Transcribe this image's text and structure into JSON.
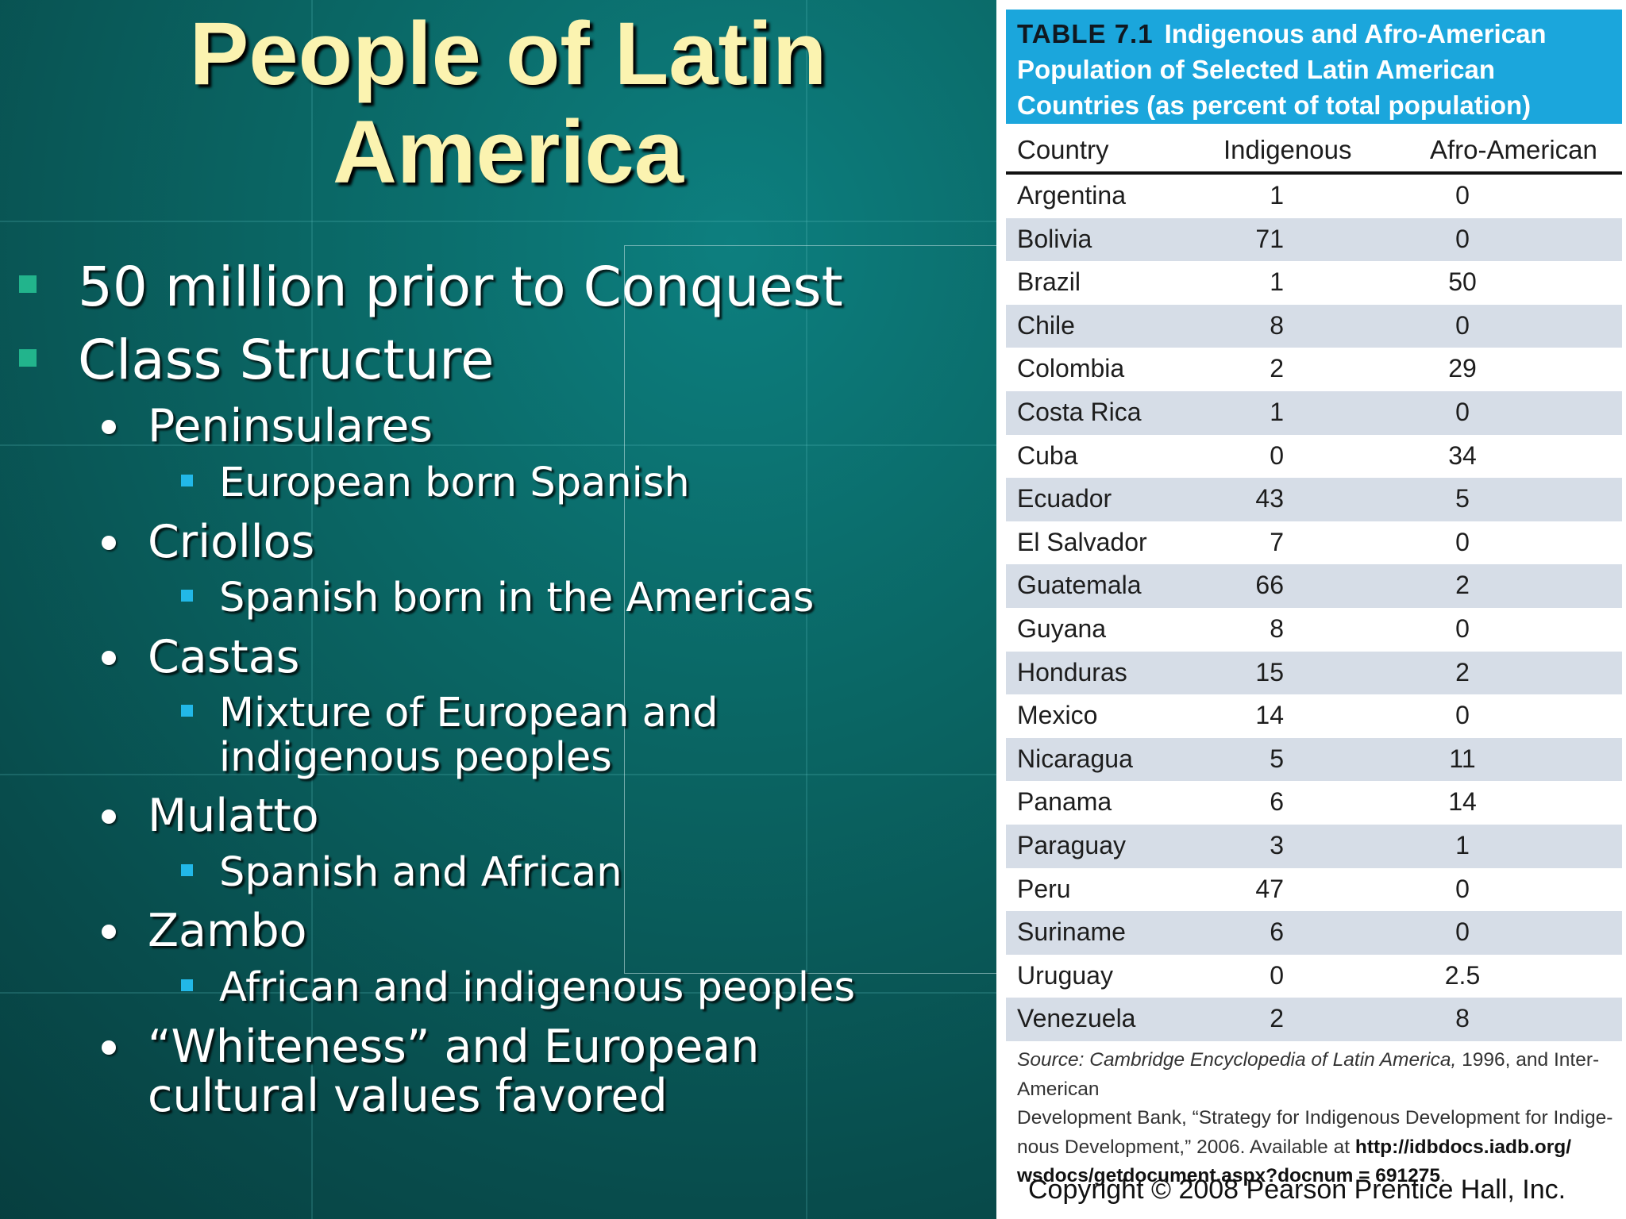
{
  "slide": {
    "title_line1": "People of Latin",
    "title_line2": "America",
    "bullets": {
      "b1": "50 million prior to Conquest",
      "b2": "Class Structure",
      "peninsulares": "Peninsulares",
      "peninsulares_desc": "European born Spanish",
      "criollos": "Criollos",
      "criollos_desc": "Spanish born in the Americas",
      "castas": "Castas",
      "castas_desc_1": "Mixture of European and",
      "castas_desc_2": "indigenous peoples",
      "mulatto": "Mulatto",
      "mulatto_desc": "Spanish and African",
      "zambo": "Zambo",
      "zambo_desc": "African and indigenous peoples",
      "whiteness_1": "“Whiteness” and European",
      "whiteness_2": "cultural values favored"
    }
  },
  "table": {
    "label": "TABLE 7.1",
    "caption_1": "Indigenous and Afro-American",
    "caption_2": "Population of Selected Latin American",
    "caption_3": "Countries (as percent of total population)",
    "columns": [
      "Country",
      "Indigenous",
      "Afro-American"
    ],
    "rows": [
      [
        "Argentina",
        "1",
        "0"
      ],
      [
        "Bolivia",
        "71",
        "0"
      ],
      [
        "Brazil",
        "1",
        "50"
      ],
      [
        "Chile",
        "8",
        "0"
      ],
      [
        "Colombia",
        "2",
        "29"
      ],
      [
        "Costa Rica",
        "1",
        "0"
      ],
      [
        "Cuba",
        "0",
        "34"
      ],
      [
        "Ecuador",
        "43",
        "5"
      ],
      [
        "El Salvador",
        "7",
        "0"
      ],
      [
        "Guatemala",
        "66",
        "2"
      ],
      [
        "Guyana",
        "8",
        "0"
      ],
      [
        "Honduras",
        "15",
        "2"
      ],
      [
        "Mexico",
        "14",
        "0"
      ],
      [
        "Nicaragua",
        "5",
        "11"
      ],
      [
        "Panama",
        "6",
        "14"
      ],
      [
        "Paraguay",
        "3",
        "1"
      ],
      [
        "Peru",
        "47",
        "0"
      ],
      [
        "Suriname",
        "6",
        "0"
      ],
      [
        "Uruguay",
        "0",
        "2.5"
      ],
      [
        "Venezuela",
        "2",
        "8"
      ]
    ],
    "source_label": "Source:",
    "source_title": "Cambridge Encyclopedia of Latin America,",
    "source_rest_1": " 1996, and Inter-American",
    "source_line_2": "Development Bank, “Strategy for Indigenous Development for Indige-",
    "source_line_3": "nous Development,” 2006. Available at ",
    "source_url_1": "http://idbdocs.iadb.org/",
    "source_url_2": "wsdocs/getdocument.aspx?docnum = 691275",
    "source_end": ".",
    "copyright": "Copyright © 2008 Pearson Prentice Hall, Inc."
  },
  "colors": {
    "background": "#0a6664",
    "title": "#fbf3b0",
    "level1_marker": "#22b48c",
    "level3_marker": "#22b8e8",
    "table_header": "#1ba6dc",
    "row_shade": "#d6dde7"
  }
}
